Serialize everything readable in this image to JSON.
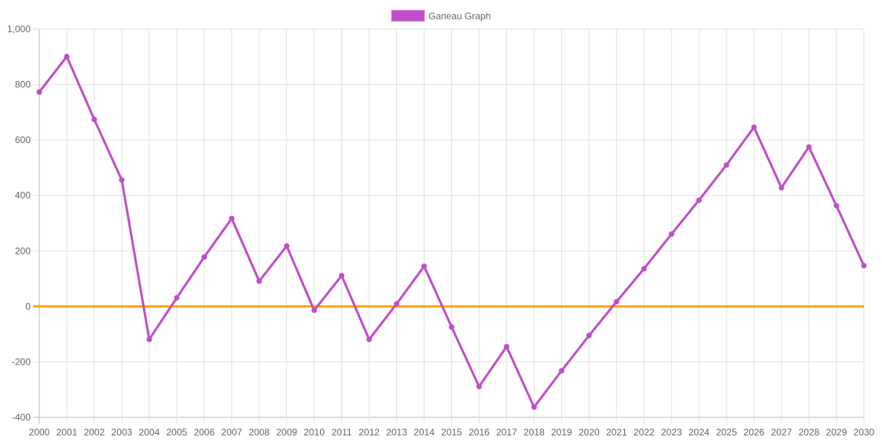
{
  "chart_data": {
    "type": "line",
    "legend": {
      "label": "Ganeau Graph",
      "placement": "top"
    },
    "x": [
      2000,
      2001,
      2002,
      2003,
      2004,
      2005,
      2006,
      2007,
      2008,
      2009,
      2010,
      2011,
      2012,
      2013,
      2014,
      2015,
      2016,
      2017,
      2018,
      2019,
      2020,
      2021,
      2022,
      2023,
      2024,
      2025,
      2026,
      2027,
      2028,
      2029,
      2030
    ],
    "series": [
      {
        "name": "Ganeau Graph",
        "color": "#c04ec8",
        "values": [
          773,
          901,
          674,
          456,
          -119,
          31,
          178,
          317,
          91,
          218,
          -14,
          111,
          -119,
          9,
          145,
          -74,
          -289,
          -145,
          -363,
          -232,
          -105,
          17,
          136,
          261,
          383,
          510,
          646,
          428,
          575,
          363,
          147
        ]
      }
    ],
    "reference_line": {
      "value": 0,
      "color": "#ffa500"
    },
    "ylim": [
      -400,
      1000
    ],
    "yticks": [
      -400,
      -200,
      0,
      200,
      400,
      600,
      800,
      1000
    ],
    "ytick_labels": [
      "-400",
      "-200",
      "0",
      "200",
      "400",
      "600",
      "800",
      "1,000"
    ],
    "grid": true
  }
}
